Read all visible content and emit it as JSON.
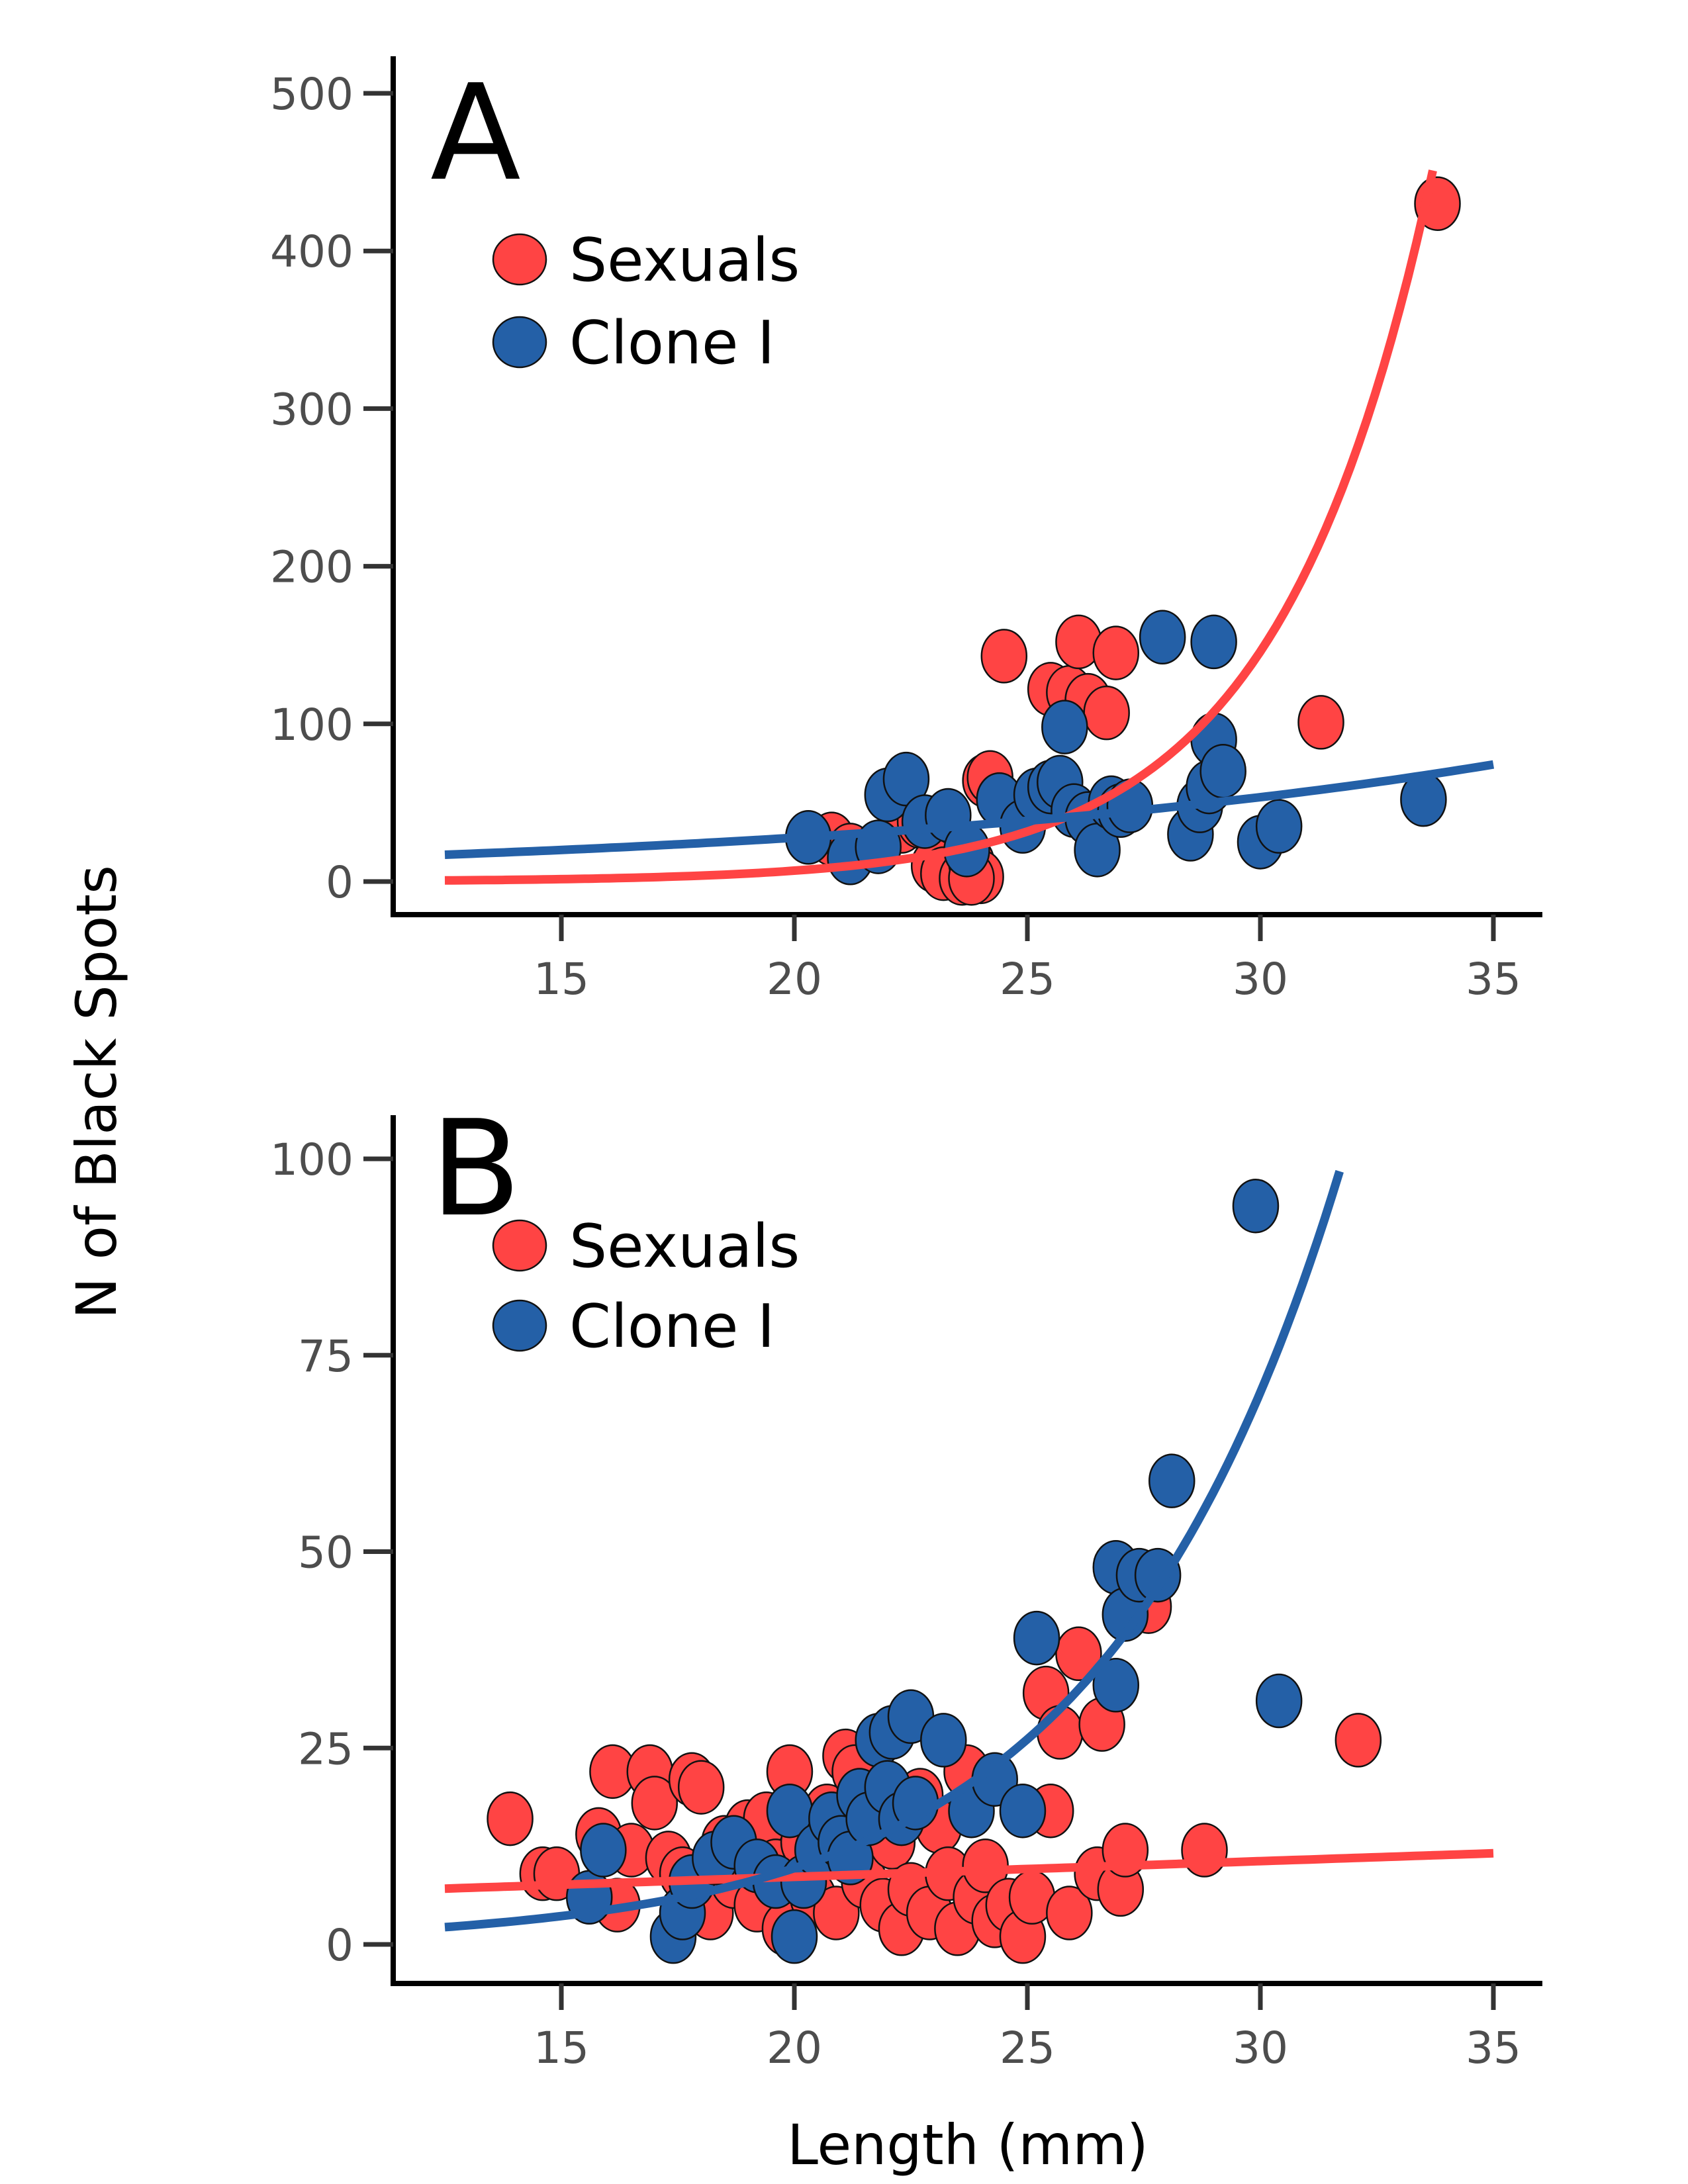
{
  "colors": {
    "sexuals": "#ff4444",
    "clone": "#2460a7",
    "axis": "#000000",
    "tick_text": "#4d4d4d"
  },
  "ylabel": "N of Black Spots",
  "xlabel": "Length (mm)",
  "chart_data": [
    {
      "type": "scatter",
      "panel": "A",
      "xlabel": "Length (mm)",
      "ylabel": "N of Black Spots",
      "xlim": [
        12,
        36
      ],
      "ylim": [
        -25,
        520
      ],
      "xticks": [
        "15",
        "20",
        "25",
        "30",
        "35"
      ],
      "xtick_values": [
        15,
        20,
        25,
        30,
        35
      ],
      "yticks": [
        "0",
        "100",
        "200",
        "300",
        "400",
        "500"
      ],
      "ytick_values": [
        0,
        100,
        200,
        300,
        400,
        500
      ],
      "legend": {
        "placement": "top-left",
        "entries": [
          "Sexuals",
          "Clone I"
        ]
      },
      "series": [
        {
          "name": "Sexuals",
          "color": "#ff4444",
          "points": [
            [
              20.8,
              27
            ],
            [
              21.2,
              20
            ],
            [
              22.3,
              35
            ],
            [
              22.7,
              38
            ],
            [
              23.0,
              10
            ],
            [
              23.2,
              5
            ],
            [
              23.6,
              2
            ],
            [
              23.8,
              12
            ],
            [
              24.0,
              3
            ],
            [
              24.1,
              64
            ],
            [
              24.2,
              66
            ],
            [
              24.5,
              143
            ],
            [
              25.5,
              122
            ],
            [
              25.9,
              120
            ],
            [
              26.1,
              152
            ],
            [
              26.3,
              115
            ],
            [
              26.7,
              107
            ],
            [
              26.9,
              145
            ],
            [
              31.3,
              101
            ],
            [
              33.8,
              430
            ],
            [
              23.8,
              2
            ]
          ],
          "fit": {
            "type": "exponential",
            "x_range": [
              12.5,
              33.7
            ],
            "a": 0.0155,
            "b": 0.305
          }
        },
        {
          "name": "Clone I",
          "color": "#2460a7",
          "points": [
            [
              20.3,
              28
            ],
            [
              21.2,
              15
            ],
            [
              21.8,
              22
            ],
            [
              22.0,
              55
            ],
            [
              22.4,
              65
            ],
            [
              22.8,
              38
            ],
            [
              23.3,
              42
            ],
            [
              23.7,
              20
            ],
            [
              24.4,
              52
            ],
            [
              24.9,
              35
            ],
            [
              25.2,
              55
            ],
            [
              25.5,
              60
            ],
            [
              25.7,
              63
            ],
            [
              25.8,
              98
            ],
            [
              26.0,
              45
            ],
            [
              26.3,
              40
            ],
            [
              26.5,
              20
            ],
            [
              26.8,
              50
            ],
            [
              27.0,
              45
            ],
            [
              27.2,
              48
            ],
            [
              27.9,
              155
            ],
            [
              28.5,
              30
            ],
            [
              28.7,
              48
            ],
            [
              28.9,
              60
            ],
            [
              29.0,
              90
            ],
            [
              29.0,
              152
            ],
            [
              29.2,
              70
            ],
            [
              30.0,
              25
            ],
            [
              30.4,
              35
            ],
            [
              33.5,
              52
            ]
          ],
          "fit": {
            "type": "exponential",
            "x_range": [
              12.5,
              35
            ],
            "a": 7.5,
            "b": 0.0655
          }
        }
      ]
    },
    {
      "type": "scatter",
      "panel": "B",
      "xlabel": "Length (mm)",
      "ylabel": "N of Black Spots",
      "xlim": [
        12,
        36
      ],
      "ylim": [
        -5,
        104
      ],
      "xticks": [
        "15",
        "20",
        "25",
        "30",
        "35"
      ],
      "xtick_values": [
        15,
        20,
        25,
        30,
        35
      ],
      "yticks": [
        "0",
        "25",
        "50",
        "75",
        "100"
      ],
      "ytick_values": [
        0,
        25,
        50,
        75,
        100
      ],
      "legend": {
        "placement": "top-left",
        "entries": [
          "Sexuals",
          "Clone I"
        ]
      },
      "series": [
        {
          "name": "Sexuals",
          "color": "#ff4444",
          "points": [
            [
              13.9,
              16
            ],
            [
              14.6,
              9
            ],
            [
              14.9,
              9
            ],
            [
              15.8,
              14
            ],
            [
              16.1,
              22
            ],
            [
              16.2,
              5
            ],
            [
              16.5,
              12
            ],
            [
              16.9,
              22
            ],
            [
              17.0,
              18
            ],
            [
              17.3,
              11
            ],
            [
              17.6,
              9
            ],
            [
              17.8,
              21
            ],
            [
              18.0,
              20
            ],
            [
              18.2,
              4
            ],
            [
              18.5,
              13
            ],
            [
              18.7,
              8
            ],
            [
              19.0,
              15
            ],
            [
              19.2,
              5
            ],
            [
              19.4,
              16
            ],
            [
              19.6,
              10
            ],
            [
              19.8,
              2
            ],
            [
              19.9,
              22
            ],
            [
              20.2,
              13
            ],
            [
              20.4,
              6
            ],
            [
              20.7,
              17
            ],
            [
              20.9,
              4
            ],
            [
              21.1,
              24
            ],
            [
              21.3,
              22
            ],
            [
              21.5,
              8
            ],
            [
              21.7,
              17
            ],
            [
              21.9,
              5
            ],
            [
              22.1,
              13
            ],
            [
              22.3,
              2
            ],
            [
              22.5,
              7
            ],
            [
              22.7,
              19
            ],
            [
              22.9,
              4
            ],
            [
              23.1,
              15
            ],
            [
              23.3,
              9
            ],
            [
              23.5,
              2
            ],
            [
              23.7,
              22
            ],
            [
              23.9,
              6
            ],
            [
              24.1,
              10
            ],
            [
              24.3,
              3
            ],
            [
              24.6,
              5
            ],
            [
              24.9,
              1
            ],
            [
              25.1,
              6
            ],
            [
              25.4,
              32
            ],
            [
              25.5,
              17
            ],
            [
              25.7,
              27
            ],
            [
              25.9,
              4
            ],
            [
              26.1,
              37
            ],
            [
              26.5,
              9
            ],
            [
              26.6,
              28
            ],
            [
              27.0,
              7
            ],
            [
              27.1,
              12
            ],
            [
              27.6,
              43
            ],
            [
              28.8,
              12
            ],
            [
              32.1,
              26
            ]
          ],
          "fit": {
            "type": "linear",
            "x_range": [
              12.5,
              35
            ],
            "intercept": 4.6,
            "slope": 0.2
          }
        },
        {
          "name": "Clone I",
          "color": "#2460a7",
          "points": [
            [
              15.6,
              6
            ],
            [
              15.9,
              12
            ],
            [
              17.4,
              1
            ],
            [
              17.6,
              4
            ],
            [
              17.8,
              8
            ],
            [
              18.3,
              11
            ],
            [
              18.7,
              13
            ],
            [
              19.2,
              10
            ],
            [
              19.6,
              8
            ],
            [
              19.9,
              17
            ],
            [
              20.0,
              1
            ],
            [
              20.2,
              8
            ],
            [
              20.5,
              12
            ],
            [
              20.8,
              16
            ],
            [
              21.0,
              13
            ],
            [
              21.2,
              11
            ],
            [
              21.4,
              19
            ],
            [
              21.6,
              16
            ],
            [
              21.8,
              26
            ],
            [
              22.0,
              20
            ],
            [
              22.1,
              27
            ],
            [
              22.3,
              16
            ],
            [
              22.5,
              29
            ],
            [
              22.6,
              18
            ],
            [
              23.2,
              26
            ],
            [
              23.8,
              17
            ],
            [
              24.3,
              21
            ],
            [
              24.9,
              17
            ],
            [
              25.2,
              39
            ],
            [
              26.9,
              33
            ],
            [
              26.9,
              48
            ],
            [
              27.1,
              42
            ],
            [
              27.4,
              47
            ],
            [
              27.8,
              47
            ],
            [
              28.1,
              59
            ],
            [
              29.9,
              94
            ],
            [
              30.4,
              31
            ]
          ],
          "fit": {
            "type": "exponential",
            "x_range": [
              12.5,
              31.7
            ],
            "a": 0.185,
            "b": 0.198
          }
        }
      ]
    }
  ]
}
